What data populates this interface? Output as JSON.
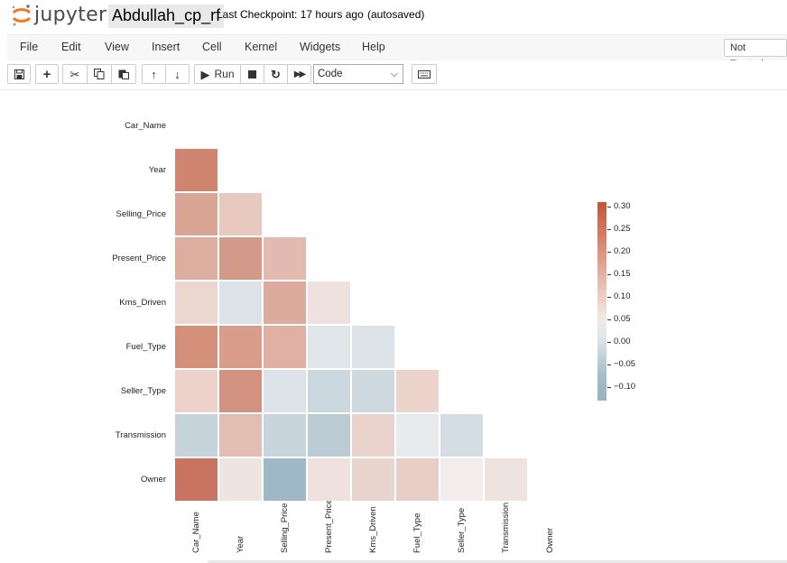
{
  "header": {
    "logo_text": "jupyter",
    "notebook_name": "Abdullah_cp_rf",
    "checkpoint": "Last Checkpoint: 17 hours ago",
    "autosave": "(autosaved)"
  },
  "menu": {
    "items": [
      "File",
      "Edit",
      "View",
      "Insert",
      "Cell",
      "Kernel",
      "Widgets",
      "Help"
    ],
    "trust": "Not Trusted"
  },
  "toolbar": {
    "run_label": "Run",
    "cell_type": "Code"
  },
  "chart_data": {
    "type": "heatmap",
    "variables": [
      "Car_Name",
      "Year",
      "Selling_Price",
      "Present_Price",
      "Kms_Driven",
      "Fuel_Type",
      "Seller_Type",
      "Transmission",
      "Owner"
    ],
    "mask": "upper-triangle",
    "cells": [
      {
        "row": "Year",
        "col": "Car_Name",
        "color": "#d08571"
      },
      {
        "row": "Selling_Price",
        "col": "Car_Name",
        "color": "#d9a595"
      },
      {
        "row": "Selling_Price",
        "col": "Year",
        "color": "#e8c9c0"
      },
      {
        "row": "Present_Price",
        "col": "Car_Name",
        "color": "#dcaea0"
      },
      {
        "row": "Present_Price",
        "col": "Year",
        "color": "#d39a89"
      },
      {
        "row": "Present_Price",
        "col": "Selling_Price",
        "color": "#e2bab0"
      },
      {
        "row": "Kms_Driven",
        "col": "Car_Name",
        "color": "#ecd6d0"
      },
      {
        "row": "Kms_Driven",
        "col": "Year",
        "color": "#dce3e8"
      },
      {
        "row": "Kms_Driven",
        "col": "Selling_Price",
        "color": "#dcab9d"
      },
      {
        "row": "Kms_Driven",
        "col": "Present_Price",
        "color": "#efe1dd"
      },
      {
        "row": "Fuel_Type",
        "col": "Car_Name",
        "color": "#d5907c"
      },
      {
        "row": "Fuel_Type",
        "col": "Year",
        "color": "#d79c8a"
      },
      {
        "row": "Fuel_Type",
        "col": "Selling_Price",
        "color": "#dfb0a3"
      },
      {
        "row": "Fuel_Type",
        "col": "Present_Price",
        "color": "#dfe5e9"
      },
      {
        "row": "Fuel_Type",
        "col": "Kms_Driven",
        "color": "#dbe3e8"
      },
      {
        "row": "Seller_Type",
        "col": "Car_Name",
        "color": "#ecd2cb"
      },
      {
        "row": "Seller_Type",
        "col": "Year",
        "color": "#d2927f"
      },
      {
        "row": "Seller_Type",
        "col": "Selling_Price",
        "color": "#dce3e8"
      },
      {
        "row": "Seller_Type",
        "col": "Present_Price",
        "color": "#cbd8df"
      },
      {
        "row": "Seller_Type",
        "col": "Kms_Driven",
        "color": "#cdd9df"
      },
      {
        "row": "Seller_Type",
        "col": "Fuel_Type",
        "color": "#ecd4cd"
      },
      {
        "row": "Transmission",
        "col": "Car_Name",
        "color": "#c6d3db"
      },
      {
        "row": "Transmission",
        "col": "Year",
        "color": "#e1bdb2"
      },
      {
        "row": "Transmission",
        "col": "Selling_Price",
        "color": "#c8d5dc"
      },
      {
        "row": "Transmission",
        "col": "Present_Price",
        "color": "#bacbd4"
      },
      {
        "row": "Transmission",
        "col": "Kms_Driven",
        "color": "#ead3cc"
      },
      {
        "row": "Transmission",
        "col": "Fuel_Type",
        "color": "#e8ebee"
      },
      {
        "row": "Transmission",
        "col": "Seller_Type",
        "color": "#d3dde3"
      },
      {
        "row": "Owner",
        "col": "Car_Name",
        "color": "#c87460"
      },
      {
        "row": "Owner",
        "col": "Year",
        "color": "#f0e4e2"
      },
      {
        "row": "Owner",
        "col": "Selling_Price",
        "color": "#9eb8c7"
      },
      {
        "row": "Owner",
        "col": "Present_Price",
        "color": "#efe1dd"
      },
      {
        "row": "Owner",
        "col": "Kms_Driven",
        "color": "#ead4ce"
      },
      {
        "row": "Owner",
        "col": "Fuel_Type",
        "color": "#e9cec7"
      },
      {
        "row": "Owner",
        "col": "Seller_Type",
        "color": "#f2edec"
      },
      {
        "row": "Owner",
        "col": "Transmission",
        "color": "#efe3e0"
      }
    ],
    "colorbar": {
      "ticks": [
        "0.30",
        "0.25",
        "0.20",
        "0.15",
        "0.10",
        "0.05",
        "0.00",
        "−0.05",
        "−0.10"
      ],
      "range": [
        -0.135,
        0.305
      ]
    }
  }
}
